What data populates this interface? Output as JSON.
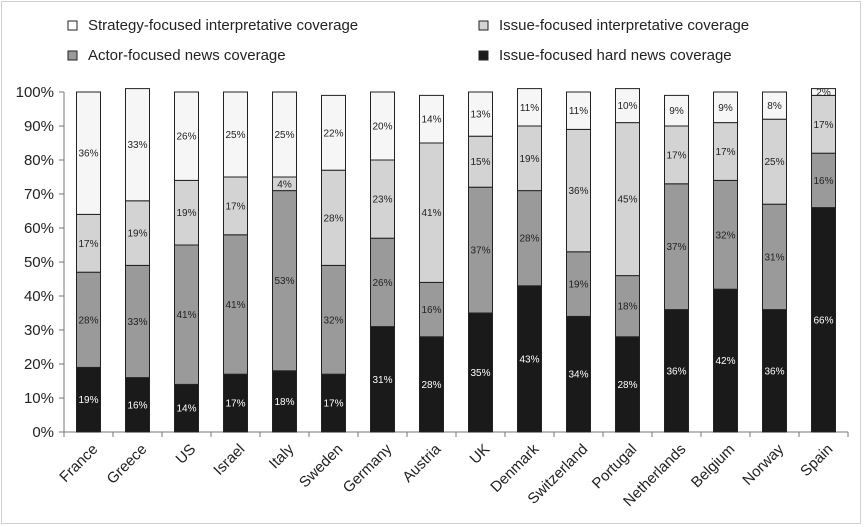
{
  "chart_data": {
    "type": "bar",
    "stacked": true,
    "percent_stacked": true,
    "title": "",
    "xlabel": "",
    "ylabel": "",
    "ylim": [
      0,
      100
    ],
    "y_ticks": [
      "0%",
      "10%",
      "20%",
      "30%",
      "40%",
      "50%",
      "60%",
      "70%",
      "80%",
      "90%",
      "100%"
    ],
    "grid": false,
    "legend_position": "top",
    "categories": [
      "France",
      "Greece",
      "US",
      "Israel",
      "Italy",
      "Sweden",
      "Germany",
      "Austria",
      "UK",
      "Denmark",
      "Switzerland",
      "Portugal",
      "Netherlands",
      "Belgium",
      "Norway",
      "Spain"
    ],
    "series": [
      {
        "name": "Issue-focused hard news coverage",
        "color": "#1a1a1a",
        "label_color": "#ffffff",
        "values": [
          19,
          16,
          14,
          17,
          18,
          17,
          31,
          28,
          35,
          43,
          34,
          28,
          36,
          42,
          36,
          66
        ]
      },
      {
        "name": "Actor-focused news coverage",
        "color": "#9a9a9a",
        "label_color": "#222222",
        "values": [
          28,
          33,
          41,
          41,
          53,
          32,
          26,
          16,
          37,
          28,
          19,
          18,
          37,
          32,
          31,
          16
        ]
      },
      {
        "name": "Issue-focused interpretative coverage",
        "color": "#d3d3d3",
        "label_color": "#222222",
        "values": [
          17,
          19,
          19,
          17,
          4,
          28,
          23,
          41,
          15,
          19,
          36,
          45,
          17,
          17,
          25,
          17
        ]
      },
      {
        "name": "Strategy-focused interpretative coverage",
        "color": "#f6f6f6",
        "label_color": "#222222",
        "values": [
          36,
          33,
          26,
          25,
          25,
          22,
          20,
          14,
          13,
          11,
          11,
          10,
          9,
          9,
          8,
          2
        ]
      }
    ],
    "legend": [
      {
        "name": "Strategy-focused interpretative coverage",
        "color": "#ffffff"
      },
      {
        "name": "Issue-focused interpretative coverage",
        "color": "#d3d3d3"
      },
      {
        "name": "Actor-focused news coverage",
        "color": "#9a9a9a"
      },
      {
        "name": "Issue-focused hard news coverage",
        "color": "#1a1a1a"
      }
    ]
  }
}
